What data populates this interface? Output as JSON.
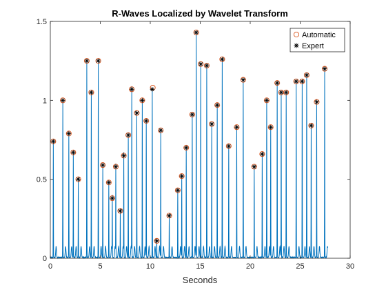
{
  "chart_data": {
    "type": "line",
    "title": "R-Waves Localized by Wavelet Transform",
    "xlabel": "Seconds",
    "ylabel": "",
    "xlim": [
      0,
      30
    ],
    "ylim": [
      0,
      1.5
    ],
    "xticks": [
      0,
      5,
      10,
      15,
      20,
      25,
      30
    ],
    "yticks": [
      0,
      0.5,
      1,
      1.5
    ],
    "xtick_labels": [
      "0",
      "5",
      "10",
      "15",
      "20",
      "25",
      "30"
    ],
    "ytick_labels": [
      "0",
      "0.5",
      "1",
      "1.5"
    ],
    "grid": false,
    "legend_position": "top-right",
    "colors": {
      "signal": "#0072BD",
      "automatic": "#D95319",
      "expert": "#000000",
      "axis": "#262626"
    },
    "series": [
      {
        "name": "Automatic",
        "marker": "circle",
        "x": [
          0.3,
          1.25,
          1.85,
          2.3,
          2.8,
          3.65,
          4.1,
          4.8,
          5.25,
          5.85,
          6.2,
          6.55,
          7.0,
          7.35,
          7.8,
          8.15,
          8.65,
          9.2,
          9.6,
          10.25,
          10.65,
          11.05,
          11.9,
          12.75,
          13.15,
          13.6,
          14.2,
          14.6,
          15.05,
          15.65,
          16.15,
          16.7,
          17.2,
          17.85,
          18.65,
          19.3,
          20.4,
          21.2,
          21.65,
          22.05,
          22.7,
          23.1,
          23.6,
          24.6,
          25.2,
          25.65,
          26.1,
          26.65,
          27.45
        ],
        "y": [
          0.74,
          1.0,
          0.79,
          0.67,
          0.5,
          1.25,
          1.05,
          1.25,
          0.59,
          0.48,
          0.38,
          0.58,
          0.3,
          0.65,
          0.78,
          1.07,
          0.92,
          1.0,
          0.87,
          1.08,
          0.11,
          0.81,
          0.27,
          0.43,
          0.52,
          0.7,
          0.91,
          1.43,
          1.23,
          1.22,
          0.85,
          0.97,
          1.26,
          0.71,
          0.83,
          1.13,
          0.58,
          0.66,
          1.0,
          0.83,
          1.11,
          1.05,
          1.05,
          1.12,
          1.12,
          1.16,
          0.84,
          0.99,
          1.2
        ]
      },
      {
        "name": "Expert",
        "marker": "asterisk",
        "x": [
          0.3,
          1.25,
          1.85,
          2.3,
          2.8,
          3.65,
          4.1,
          4.8,
          5.25,
          5.85,
          6.2,
          6.55,
          7.0,
          7.35,
          7.8,
          8.15,
          8.65,
          9.2,
          9.6,
          10.2,
          10.65,
          11.05,
          11.9,
          12.75,
          13.15,
          13.6,
          14.2,
          14.6,
          15.05,
          15.65,
          16.15,
          16.7,
          17.2,
          17.85,
          18.65,
          19.3,
          20.4,
          21.2,
          21.65,
          22.05,
          22.7,
          23.1,
          23.6,
          24.6,
          25.2,
          25.65,
          26.1,
          26.65,
          27.45
        ],
        "y": [
          0.74,
          1.0,
          0.79,
          0.67,
          0.5,
          1.25,
          1.05,
          1.25,
          0.59,
          0.48,
          0.38,
          0.58,
          0.3,
          0.65,
          0.78,
          1.07,
          0.92,
          1.0,
          0.87,
          1.07,
          0.11,
          0.81,
          0.27,
          0.43,
          0.52,
          0.7,
          0.91,
          1.43,
          1.23,
          1.22,
          0.85,
          0.97,
          1.26,
          0.71,
          0.83,
          1.13,
          0.58,
          0.66,
          1.0,
          0.83,
          1.11,
          1.05,
          1.05,
          1.12,
          1.12,
          1.16,
          0.84,
          0.99,
          1.2
        ]
      }
    ],
    "signal": {
      "peak_x": [
        0.3,
        1.25,
        1.85,
        2.3,
        2.8,
        3.65,
        4.1,
        4.8,
        5.25,
        5.85,
        6.2,
        6.55,
        7.0,
        7.35,
        7.8,
        8.15,
        8.65,
        9.2,
        9.6,
        10.2,
        10.65,
        11.05,
        11.9,
        12.75,
        13.15,
        13.6,
        14.2,
        14.6,
        15.05,
        15.65,
        16.15,
        16.7,
        17.2,
        17.85,
        18.65,
        19.3,
        20.4,
        21.2,
        21.65,
        22.05,
        22.7,
        23.1,
        23.6,
        24.6,
        25.2,
        25.65,
        26.1,
        26.65,
        27.45
      ],
      "peak_y": [
        0.74,
        1.0,
        0.79,
        0.67,
        0.5,
        1.25,
        1.05,
        1.25,
        0.59,
        0.48,
        0.38,
        0.58,
        0.3,
        0.65,
        0.78,
        1.07,
        0.92,
        1.0,
        0.87,
        1.07,
        0.11,
        0.81,
        0.27,
        0.43,
        0.52,
        0.7,
        0.91,
        1.43,
        1.23,
        1.22,
        0.85,
        0.97,
        1.26,
        0.71,
        0.83,
        1.13,
        0.58,
        0.66,
        1.0,
        0.83,
        1.11,
        1.05,
        1.05,
        1.12,
        1.12,
        1.16,
        0.84,
        0.99,
        1.2
      ],
      "x_end": 27.75
    }
  }
}
